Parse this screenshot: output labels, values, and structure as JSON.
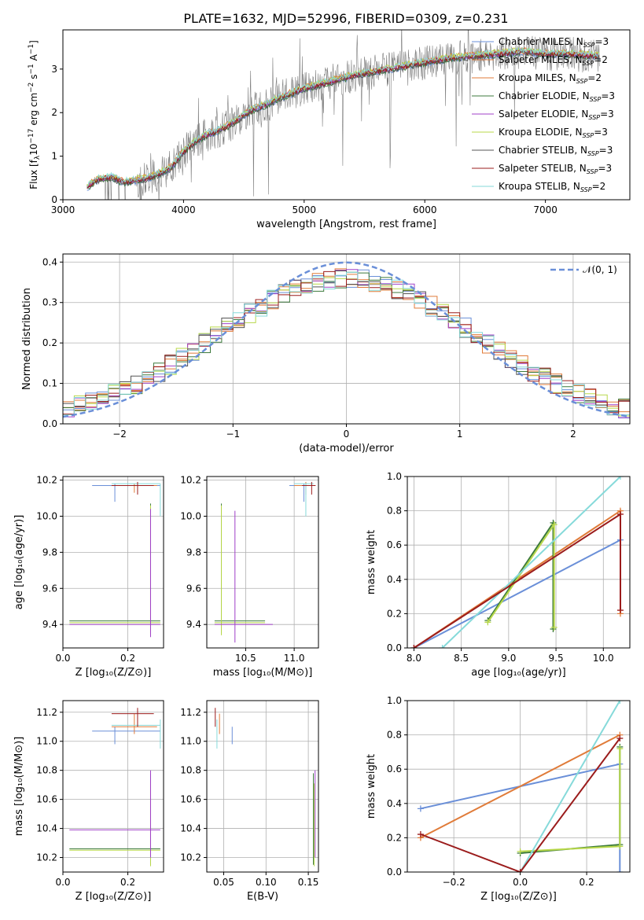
{
  "title": "PLATE=1632, MJD=52996, FIBERID=0309, z=0.231",
  "colors": {
    "gray": "#808080",
    "chabrier_miles": "#6a8fd8",
    "salpeter_miles": "#e07b39",
    "kroupa_miles": "#e07b39",
    "chabrier_elodie": "#3c7a3c",
    "salpeter_elodie": "#a040c8",
    "kroupa_elodie": "#b8d84a",
    "chabrier_stelib": "#555555",
    "salpeter_stelib": "#9b1c1c",
    "kroupa_stelib": "#86dada",
    "gauss": "#6a8fd8",
    "grid": "#b0b0b0"
  },
  "chart_data": [
    {
      "id": "spectrum",
      "type": "line",
      "xlabel": "wavelength [Angstrom, rest frame]",
      "ylabel_parts": [
        "Flux [f",
        "λ",
        "10",
        "−17",
        " erg cm",
        "−2",
        " s",
        "−1",
        " A",
        "−1",
        "]"
      ],
      "xlim": [
        3000,
        7700
      ],
      "ylim": [
        0,
        3.9
      ],
      "xticks": [
        3000,
        4000,
        5000,
        6000,
        7000
      ],
      "yticks": [
        0,
        1,
        2,
        3
      ],
      "legend_position": "top-right",
      "series": [
        {
          "name": "Chabrier MILES, N",
          "sub": "SSP",
          "tail": "=3",
          "color_key": "chabrier_miles"
        },
        {
          "name": "Salpeter MILES, N",
          "sub": "SSP",
          "tail": "=2",
          "color_key": "salpeter_miles"
        },
        {
          "name": "Kroupa MILES, N",
          "sub": "SSP",
          "tail": "=2",
          "color_key": "kroupa_miles"
        },
        {
          "name": "Chabrier ELODIE, N",
          "sub": "SSP",
          "tail": "=3",
          "color_key": "chabrier_elodie"
        },
        {
          "name": "Salpeter ELODIE, N",
          "sub": "SSP",
          "tail": "=3",
          "color_key": "salpeter_elodie"
        },
        {
          "name": "Kroupa ELODIE, N",
          "sub": "SSP",
          "tail": "=3",
          "color_key": "kroupa_elodie"
        },
        {
          "name": "Chabrier STELIB, N",
          "sub": "SSP",
          "tail": "=3",
          "color_key": "chabrier_stelib"
        },
        {
          "name": "Salpeter STELIB, N",
          "sub": "SSP",
          "tail": "=3",
          "color_key": "salpeter_stelib"
        },
        {
          "name": "Kroupa STELIB, N",
          "sub": "SSP",
          "tail": "=2",
          "color_key": "kroupa_stelib"
        }
      ],
      "model_continuum": [
        [
          3200,
          0.3
        ],
        [
          3300,
          0.48
        ],
        [
          3400,
          0.52
        ],
        [
          3500,
          0.4
        ],
        [
          3600,
          0.45
        ],
        [
          3700,
          0.5
        ],
        [
          3800,
          0.6
        ],
        [
          3900,
          0.75
        ],
        [
          4000,
          1.1
        ],
        [
          4100,
          1.35
        ],
        [
          4200,
          1.5
        ],
        [
          4300,
          1.6
        ],
        [
          4400,
          1.75
        ],
        [
          4500,
          1.95
        ],
        [
          4600,
          2.1
        ],
        [
          4700,
          2.2
        ],
        [
          4800,
          2.35
        ],
        [
          4900,
          2.45
        ],
        [
          5000,
          2.55
        ],
        [
          5200,
          2.7
        ],
        [
          5400,
          2.85
        ],
        [
          5600,
          2.95
        ],
        [
          5800,
          3.05
        ],
        [
          6000,
          3.15
        ],
        [
          6200,
          3.25
        ],
        [
          6400,
          3.3
        ],
        [
          6600,
          3.35
        ],
        [
          6800,
          3.4
        ],
        [
          7000,
          3.35
        ],
        [
          7200,
          3.35
        ],
        [
          7400,
          3.3
        ]
      ]
    },
    {
      "id": "residuals",
      "type": "line",
      "xlabel": "(data-model)/error",
      "ylabel": "Normed distribution",
      "xlim": [
        -2.5,
        2.5
      ],
      "ylim": [
        0,
        0.42
      ],
      "xticks": [
        -2,
        -1,
        0,
        1,
        2
      ],
      "yticks": [
        0.0,
        0.1,
        0.2,
        0.3,
        0.4
      ],
      "grid": true,
      "legend": {
        "label": "𝒩(0, 1)",
        "position": "top-right"
      }
    },
    {
      "id": "age_vs_Z",
      "type": "scatter",
      "xlabel": "Z [log₁₀(Z/Z⊙)]",
      "ylabel": "age  [log₁₀(age/yr)]",
      "xlim": [
        0,
        0.31
      ],
      "ylim": [
        9.27,
        10.22
      ],
      "xticks": [
        0.0,
        0.2
      ],
      "yticks": [
        9.4,
        9.6,
        9.8,
        10.0,
        10.2
      ],
      "grid": true
    },
    {
      "id": "age_vs_mass",
      "type": "scatter",
      "xlabel": "mass [log₁₀(M/M⊙)]",
      "xlim": [
        10.1,
        11.25
      ],
      "ylim": [
        9.27,
        10.22
      ],
      "xticks": [
        10.5,
        11.0
      ],
      "yticks": [
        9.4,
        9.6,
        9.8,
        10.0,
        10.2
      ],
      "grid": true
    },
    {
      "id": "mw_vs_age",
      "type": "line",
      "xlabel": "age  [log₁₀(age/yr)]",
      "ylabel": "mass weight",
      "xlim": [
        7.93,
        10.28
      ],
      "ylim": [
        0,
        1.0
      ],
      "xticks": [
        8.0,
        8.5,
        9.0,
        9.5,
        10.0
      ],
      "yticks": [
        0.0,
        0.2,
        0.4,
        0.6,
        0.8,
        1.0
      ],
      "grid": true,
      "series": [
        {
          "color_key": "chabrier_miles",
          "points": [
            [
              8.0,
              0.0
            ],
            [
              10.18,
              0.63
            ]
          ]
        },
        {
          "color_key": "salpeter_miles",
          "points": [
            [
              8.0,
              0.0
            ],
            [
              10.18,
              0.8
            ],
            [
              10.18,
              0.2
            ]
          ]
        },
        {
          "color_key": "chabrier_elodie",
          "points": [
            [
              8.78,
              0.16
            ],
            [
              9.47,
              0.73
            ],
            [
              9.47,
              0.11
            ]
          ]
        },
        {
          "color_key": "kroupa_elodie",
          "points": [
            [
              8.78,
              0.15
            ],
            [
              9.48,
              0.72
            ],
            [
              9.48,
              0.12
            ]
          ]
        },
        {
          "color_key": "kroupa_stelib",
          "points": [
            [
              8.3,
              0.0
            ],
            [
              10.18,
              1.0
            ]
          ]
        },
        {
          "color_key": "salpeter_stelib",
          "points": [
            [
              8.0,
              0.0
            ],
            [
              10.18,
              0.78
            ],
            [
              10.18,
              0.22
            ]
          ]
        }
      ]
    },
    {
      "id": "mass_vs_Z",
      "type": "scatter",
      "xlabel": "Z [log₁₀(Z/Z⊙)]",
      "ylabel": "mass [log₁₀(M/M⊙)]",
      "xlim": [
        0,
        0.31
      ],
      "ylim": [
        10.1,
        11.28
      ],
      "xticks": [
        0.0,
        0.2
      ],
      "yticks": [
        10.2,
        10.4,
        10.6,
        10.8,
        11.0,
        11.2
      ],
      "grid": true
    },
    {
      "id": "mass_vs_ebv",
      "type": "scatter",
      "xlabel": "E(B-V)",
      "xlim": [
        0.03,
        0.162
      ],
      "ylim": [
        10.1,
        11.28
      ],
      "xticks": [
        0.05,
        0.1,
        0.15
      ],
      "yticks": [
        10.2,
        10.4,
        10.6,
        10.8,
        11.0,
        11.2
      ],
      "grid": true
    },
    {
      "id": "mw_vs_Z",
      "type": "line",
      "xlabel": "Z [log₁₀(Z/Z⊙)]",
      "ylabel": "mass weight",
      "xlim": [
        -0.34,
        0.33
      ],
      "ylim": [
        0,
        1.0
      ],
      "xticks": [
        -0.2,
        0.0,
        0.2
      ],
      "yticks": [
        0.0,
        0.2,
        0.4,
        0.6,
        0.8,
        1.0
      ],
      "grid": true,
      "series": [
        {
          "color_key": "chabrier_miles",
          "points": [
            [
              -0.3,
              0.37
            ],
            [
              0.3,
              0.63
            ],
            [
              0.3,
              0.0
            ]
          ]
        },
        {
          "color_key": "salpeter_miles",
          "points": [
            [
              -0.3,
              0.2
            ],
            [
              0.3,
              0.8
            ]
          ]
        },
        {
          "color_key": "chabrier_elodie",
          "points": [
            [
              0.0,
              0.11
            ],
            [
              0.3,
              0.16
            ],
            [
              0.3,
              0.73
            ]
          ]
        },
        {
          "color_key": "kroupa_elodie",
          "points": [
            [
              0.0,
              0.12
            ],
            [
              0.3,
              0.15
            ],
            [
              0.3,
              0.72
            ]
          ]
        },
        {
          "color_key": "kroupa_stelib",
          "points": [
            [
              0.0,
              0.0
            ],
            [
              0.3,
              1.0
            ]
          ]
        },
        {
          "color_key": "salpeter_stelib",
          "points": [
            [
              -0.3,
              0.22
            ],
            [
              0.0,
              0.0
            ],
            [
              0.3,
              0.78
            ]
          ]
        }
      ]
    }
  ]
}
